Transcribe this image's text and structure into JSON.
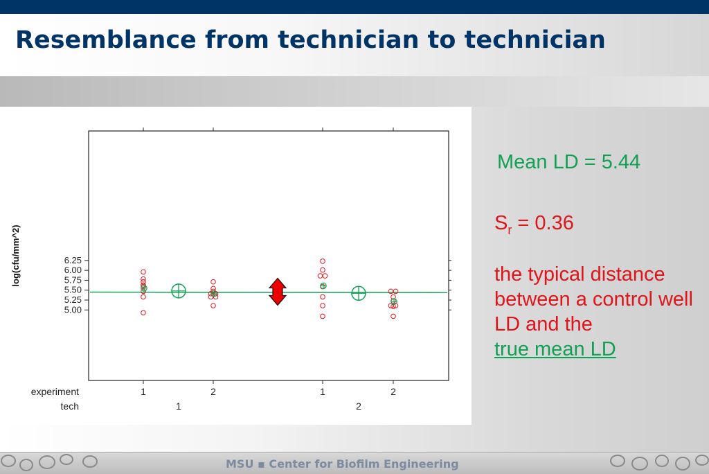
{
  "slide": {
    "title": "Resemblance from technician to technician",
    "mean_ld": "Mean LD = 5.44",
    "sr_label": "S",
    "sr_sub": "r",
    "sr_value": "  = 0.36",
    "explanation": "the typical distance between a control well LD and the",
    "explanation_link": "true mean LD",
    "footer": "MSU  ▪  Center for Biofilm Engineering"
  },
  "colors": {
    "brand_navy": "#003366",
    "green": "#11a054",
    "red": "#e0141b"
  },
  "chart_data": {
    "type": "scatter",
    "ylabel": "log(cfu/mm^2)",
    "xlabel": "",
    "ylim": [
      4.85,
      6.29
    ],
    "yticks": [
      "6.25",
      "6.00",
      "5.75",
      "5.50",
      "5.25",
      "5.00"
    ],
    "row_labels": [
      "experiment",
      "tech"
    ],
    "groups": [
      {
        "tech": "1",
        "experiment": "1",
        "values": [
          5.96,
          5.78,
          5.71,
          5.63,
          5.59,
          5.47,
          5.33,
          4.93
        ],
        "mean": 5.55
      },
      {
        "tech": "1",
        "experiment": "2",
        "values": [
          5.71,
          5.54,
          5.47,
          5.41,
          5.41,
          5.33,
          5.33,
          5.11
        ],
        "mean": 5.41
      },
      {
        "tech": "2",
        "experiment": "1",
        "values": [
          6.23,
          6.01,
          5.86,
          5.86,
          5.59,
          5.33,
          5.11,
          4.84
        ],
        "mean": 5.61
      },
      {
        "tech": "2",
        "experiment": "2",
        "values": [
          5.47,
          5.47,
          5.33,
          5.23,
          5.11,
          5.11,
          5.09,
          4.84
        ],
        "mean": 5.21
      }
    ],
    "tech_means": [
      {
        "tech": "1",
        "mean": 5.48
      },
      {
        "tech": "2",
        "mean": 5.42
      }
    ],
    "overall_mean_line": {
      "start": 5.45,
      "end": 5.44
    },
    "arrow": {
      "from": 5.12,
      "to": 5.8
    }
  }
}
